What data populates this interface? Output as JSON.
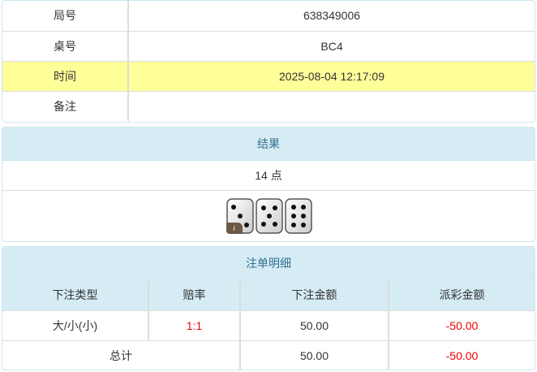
{
  "info": [
    {
      "label": "局号",
      "value": "638349006"
    },
    {
      "label": "桌号",
      "value": "BC4"
    },
    {
      "label": "时间",
      "value": "2025-08-04 12:17:09"
    },
    {
      "label": "备注",
      "value": ""
    }
  ],
  "result": {
    "title": "结果",
    "points": "14 点",
    "dice": [
      3,
      5,
      6
    ],
    "badge": "i"
  },
  "bets": {
    "title": "注单明细",
    "headers": [
      "下注类型",
      "赔率",
      "下注金额",
      "派彩金额"
    ],
    "rows": [
      {
        "type": "大/小(小)",
        "odds": "1:1",
        "amount": "50.00",
        "payout": "-50.00"
      }
    ],
    "total": {
      "label": "总计",
      "amount": "50.00",
      "payout": "-50.00"
    }
  },
  "colors": {
    "highlight": "#ffff99",
    "header_bg": "#d6ecf5",
    "negative": "#e00000"
  }
}
